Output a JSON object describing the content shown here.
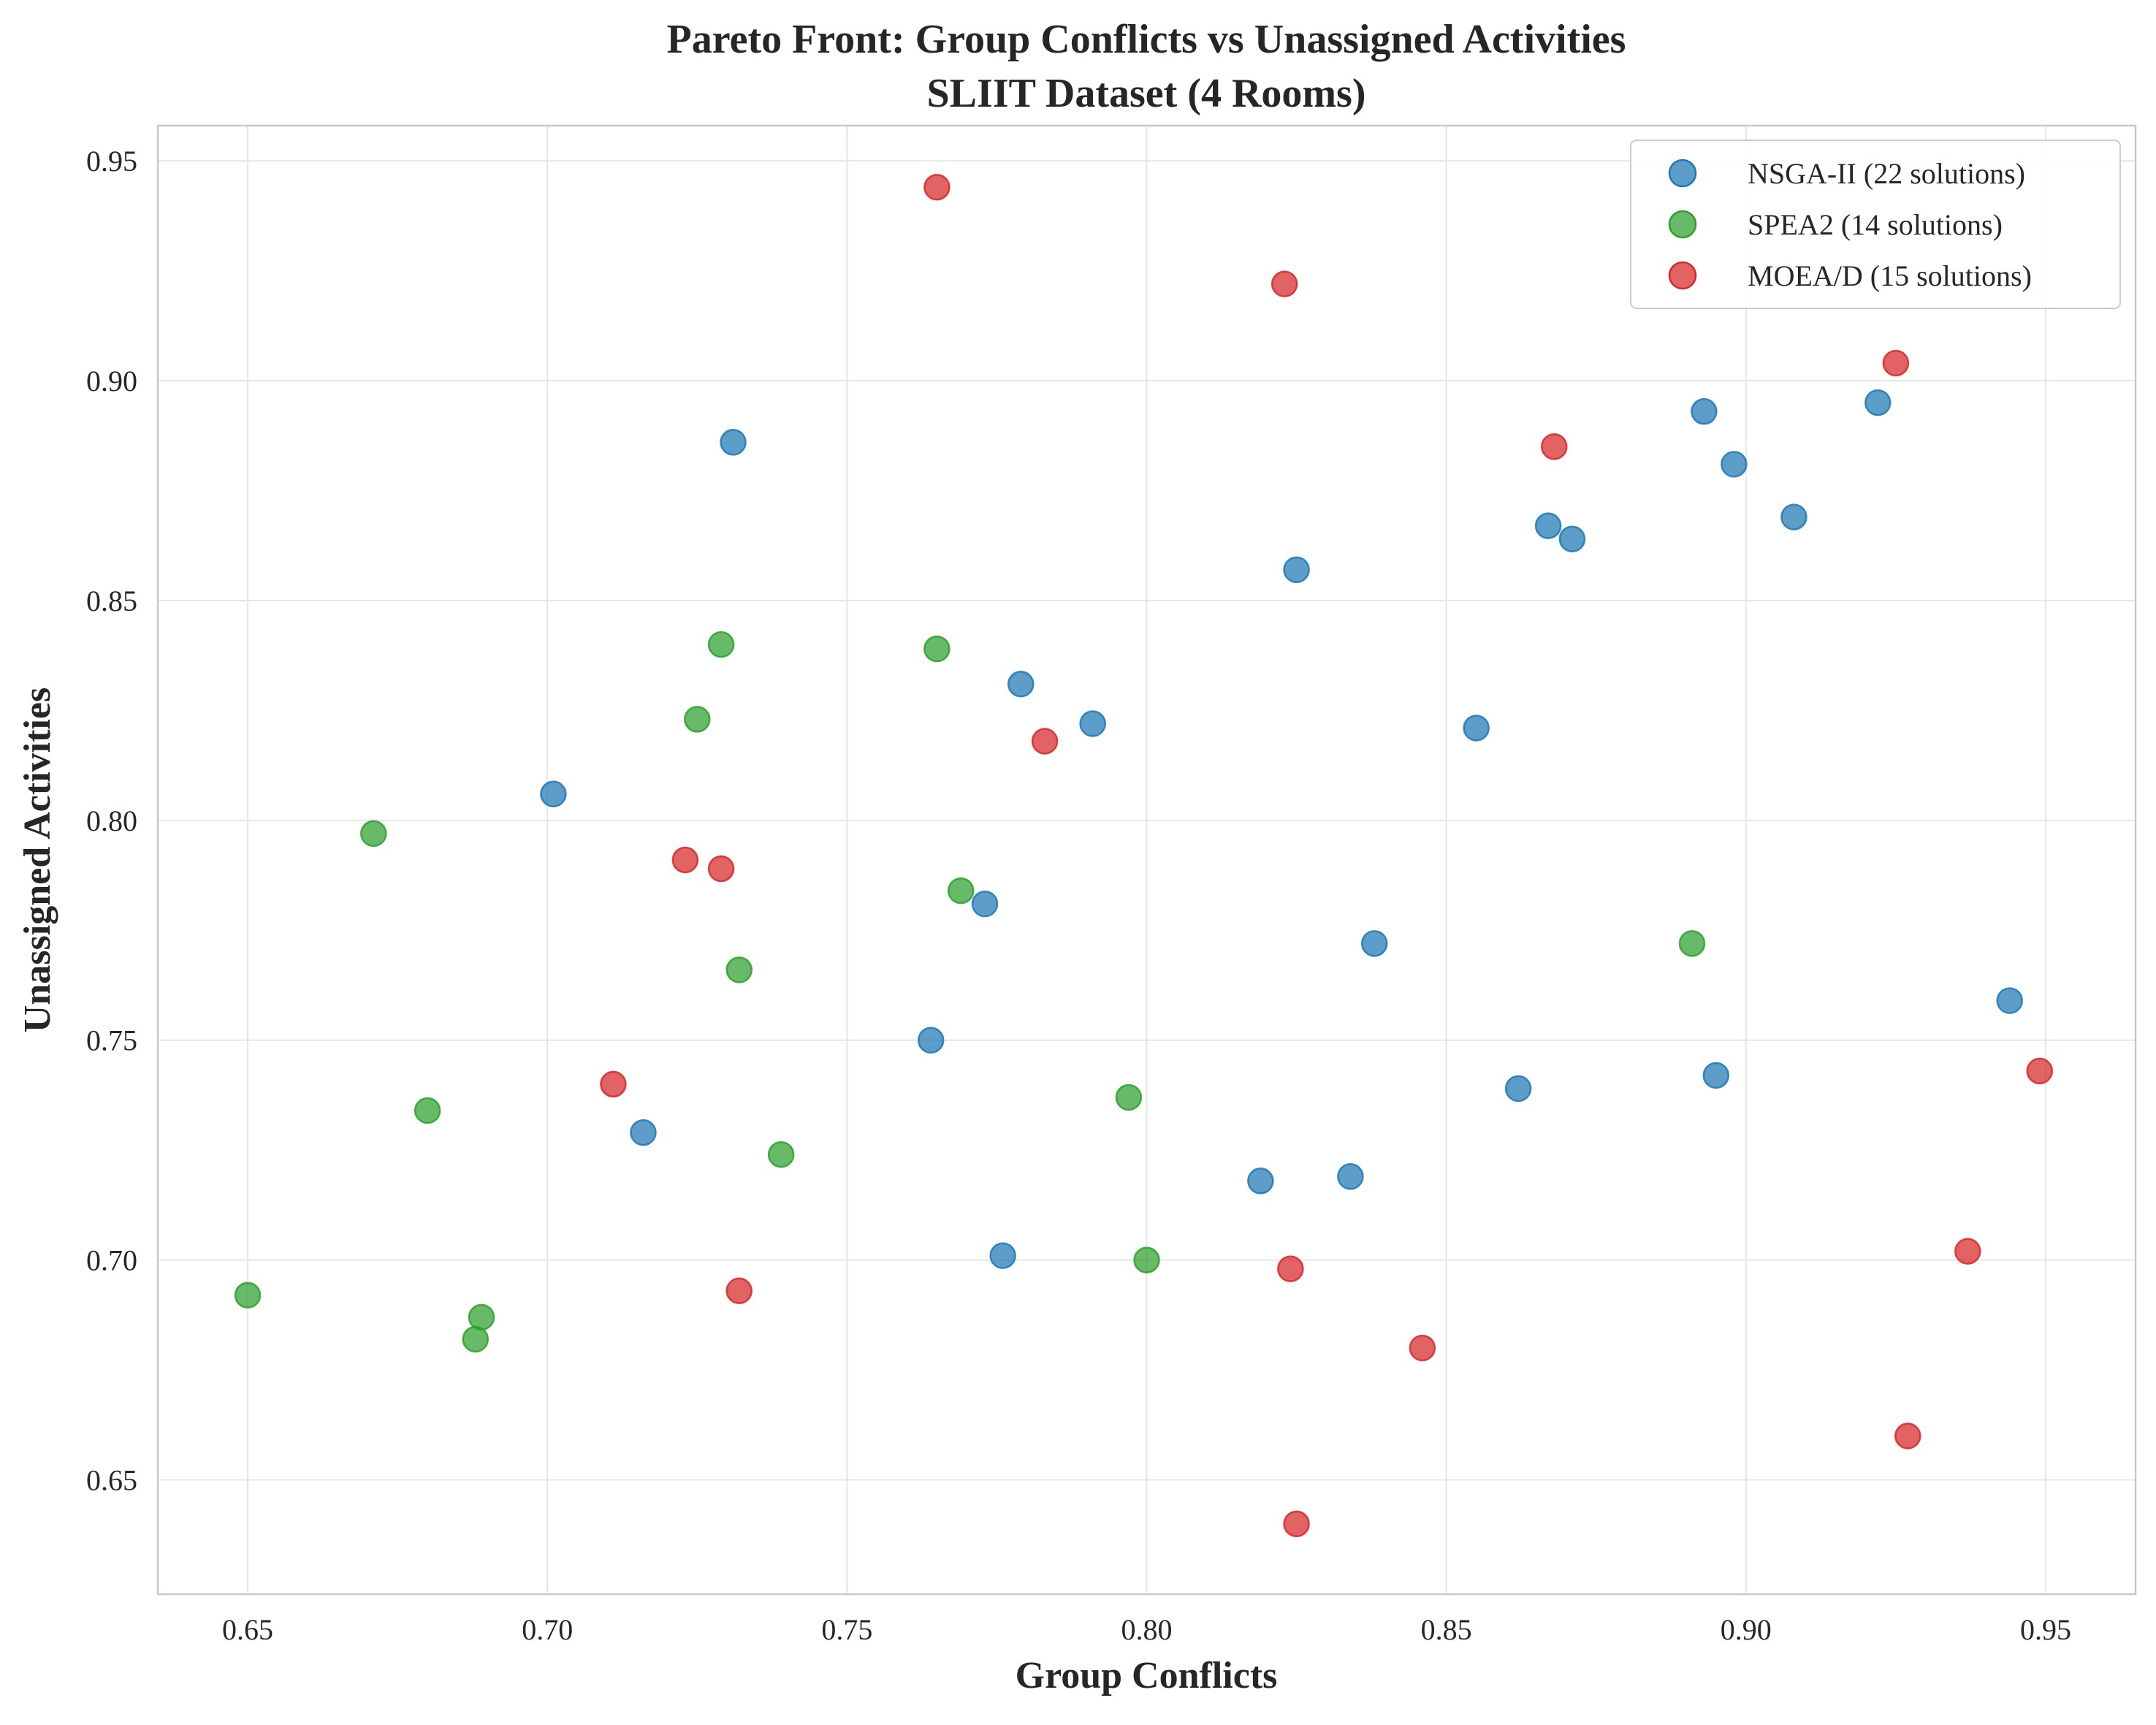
{
  "chart_data": {
    "type": "scatter",
    "title": "Pareto Front: Group Conflicts vs Unassigned Activities",
    "subtitle": "SLIIT Dataset (4 Rooms)",
    "xlabel": "Group Conflicts",
    "ylabel": "Unassigned Activities",
    "xlim": [
      0.635,
      0.965
    ],
    "ylim": [
      0.624,
      0.958
    ],
    "xticks": [
      "0.65",
      "0.70",
      "0.75",
      "0.80",
      "0.85",
      "0.90",
      "0.95"
    ],
    "yticks": [
      "0.65",
      "0.70",
      "0.75",
      "0.80",
      "0.85",
      "0.90",
      "0.95"
    ],
    "grid": true,
    "legend_position": "top-right",
    "series": [
      {
        "name": "NSGA-II (22 solutions)",
        "color": "#1f77b4",
        "points": [
          [
            0.731,
            0.886
          ],
          [
            0.701,
            0.806
          ],
          [
            0.716,
            0.729
          ],
          [
            0.764,
            0.75
          ],
          [
            0.773,
            0.781
          ],
          [
            0.776,
            0.701
          ],
          [
            0.779,
            0.831
          ],
          [
            0.791,
            0.822
          ],
          [
            0.819,
            0.718
          ],
          [
            0.825,
            0.857
          ],
          [
            0.834,
            0.719
          ],
          [
            0.838,
            0.772
          ],
          [
            0.855,
            0.821
          ],
          [
            0.862,
            0.739
          ],
          [
            0.867,
            0.867
          ],
          [
            0.871,
            0.864
          ],
          [
            0.893,
            0.893
          ],
          [
            0.895,
            0.742
          ],
          [
            0.898,
            0.881
          ],
          [
            0.908,
            0.869
          ],
          [
            0.922,
            0.895
          ],
          [
            0.944,
            0.759
          ]
        ]
      },
      {
        "name": "SPEA2 (14 solutions)",
        "color": "#2ca02c",
        "points": [
          [
            0.65,
            0.692
          ],
          [
            0.671,
            0.797
          ],
          [
            0.68,
            0.734
          ],
          [
            0.688,
            0.682
          ],
          [
            0.689,
            0.687
          ],
          [
            0.725,
            0.823
          ],
          [
            0.729,
            0.84
          ],
          [
            0.732,
            0.766
          ],
          [
            0.739,
            0.724
          ],
          [
            0.765,
            0.839
          ],
          [
            0.769,
            0.784
          ],
          [
            0.797,
            0.737
          ],
          [
            0.8,
            0.7
          ],
          [
            0.891,
            0.772
          ]
        ]
      },
      {
        "name": "MOEA/D (15 solutions)",
        "color": "#d62728",
        "points": [
          [
            0.711,
            0.74
          ],
          [
            0.723,
            0.791
          ],
          [
            0.729,
            0.789
          ],
          [
            0.732,
            0.693
          ],
          [
            0.765,
            0.944
          ],
          [
            0.783,
            0.818
          ],
          [
            0.823,
            0.922
          ],
          [
            0.824,
            0.698
          ],
          [
            0.825,
            0.64
          ],
          [
            0.846,
            0.68
          ],
          [
            0.868,
            0.885
          ],
          [
            0.925,
            0.904
          ],
          [
            0.927,
            0.66
          ],
          [
            0.937,
            0.702
          ],
          [
            0.949,
            0.743
          ]
        ]
      }
    ]
  }
}
